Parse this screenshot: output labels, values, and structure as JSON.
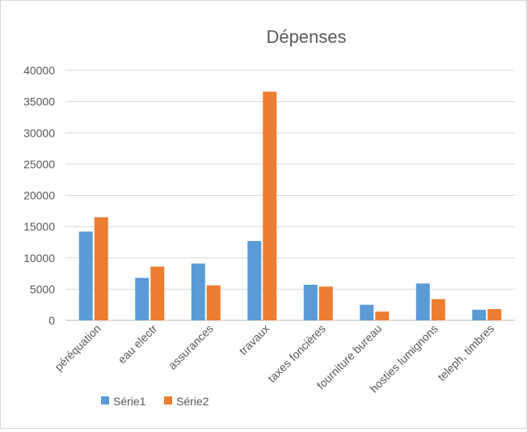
{
  "chart_data": {
    "type": "bar",
    "title": "Dépenses",
    "xlabel": "",
    "ylabel": "",
    "ylim": [
      0,
      40000
    ],
    "yticks": [
      0,
      5000,
      10000,
      15000,
      20000,
      25000,
      30000,
      35000,
      40000
    ],
    "grid": true,
    "legend_position": "bottom-left",
    "categories": [
      "péréquation",
      "eau electr",
      "assurances",
      "travaux",
      "taxes foncières",
      "fourniture bureau",
      "hosties lumignons",
      "teleph, timbres"
    ],
    "series": [
      {
        "name": "Série1",
        "color": "#5b9bd5",
        "values": [
          14200,
          6800,
          9100,
          12700,
          5700,
          2500,
          5900,
          1700
        ]
      },
      {
        "name": "Série2",
        "color": "#ed7d31",
        "values": [
          16500,
          8600,
          5600,
          36600,
          5400,
          1400,
          3400,
          1800
        ]
      }
    ]
  }
}
